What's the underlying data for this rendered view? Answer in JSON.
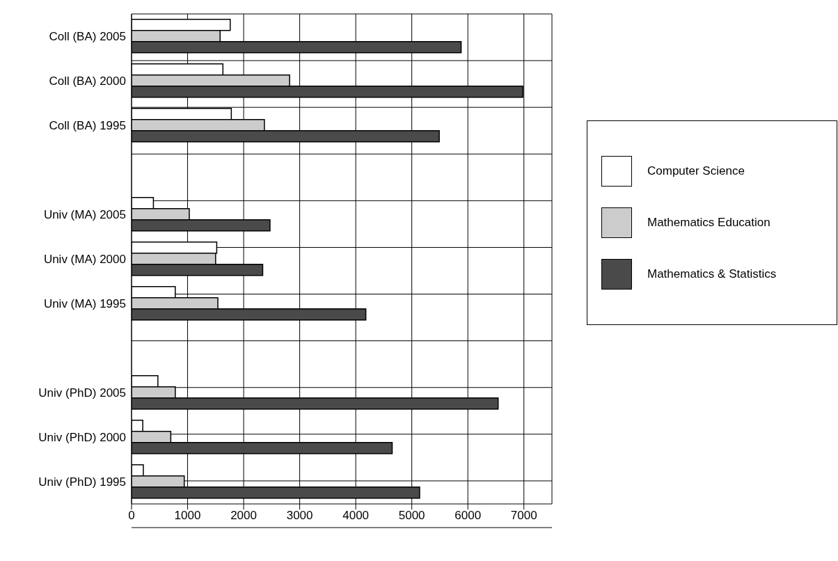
{
  "chart_data": {
    "type": "bar",
    "orientation": "horizontal",
    "categories": [
      "Coll (BA) 2005",
      "Coll (BA) 2000",
      "Coll (BA) 1995",
      null,
      "Univ (MA) 2005",
      "Univ (MA) 2000",
      "Univ (MA) 1995",
      null,
      "Univ (PhD) 2005",
      "Univ (PhD) 2000",
      "Univ (PhD) 1995"
    ],
    "series": [
      {
        "name": "Computer Science",
        "color": "#ffffff",
        "values": [
          1760,
          1630,
          1780,
          null,
          390,
          1520,
          780,
          null,
          470,
          200,
          210
        ]
      },
      {
        "name": "Mathematics Education",
        "color": "#cccccc",
        "values": [
          1580,
          2820,
          2370,
          null,
          1030,
          1500,
          1540,
          null,
          780,
          700,
          940
        ]
      },
      {
        "name": "Mathematics & Statistics",
        "color": "#4a4a4a",
        "values": [
          5880,
          6980,
          5490,
          null,
          2470,
          2340,
          4180,
          null,
          6540,
          4650,
          5140
        ]
      }
    ],
    "xlim": [
      0,
      7500
    ],
    "xticks": [
      0,
      1000,
      2000,
      3000,
      4000,
      5000,
      6000,
      7000
    ],
    "grid": true,
    "legend": "right"
  }
}
